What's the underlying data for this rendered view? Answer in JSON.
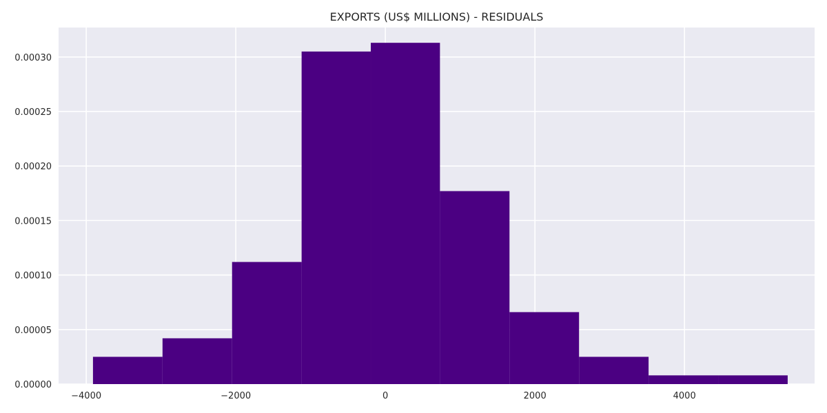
{
  "chart_data": {
    "type": "bar",
    "title": "EXPORTS (US$ MILLIONS) - RESIDUALS",
    "xlabel": "",
    "ylabel": "",
    "xlim": [
      -4370,
      5740
    ],
    "ylim": [
      0,
      0.000327
    ],
    "grid": true,
    "x_ticks": [
      -4000,
      -2000,
      0,
      2000,
      4000
    ],
    "x_tick_labels": [
      "−4000",
      "−2000",
      "0",
      "2000",
      "4000"
    ],
    "y_ticks": [
      0,
      5e-05,
      0.0001,
      0.00015,
      0.0002,
      0.00025,
      0.0003
    ],
    "y_tick_labels": [
      "0.00000",
      "0.00005",
      "0.00010",
      "0.00015",
      "0.00020",
      "0.00025",
      "0.00030"
    ],
    "bin_edges": [
      -3910,
      -2980,
      -2050,
      -1120,
      -195,
      730,
      1660,
      2590,
      3520,
      4450,
      5380
    ],
    "values": [
      2.5e-05,
      4.2e-05,
      0.000112,
      0.000305,
      0.000313,
      0.000177,
      6.6e-05,
      2.5e-05,
      8e-06,
      8e-06
    ],
    "colors": {
      "bar": "#4b0082",
      "plot_background": "#eaeaf2",
      "grid": "#ffffff",
      "text": "#262626"
    }
  }
}
